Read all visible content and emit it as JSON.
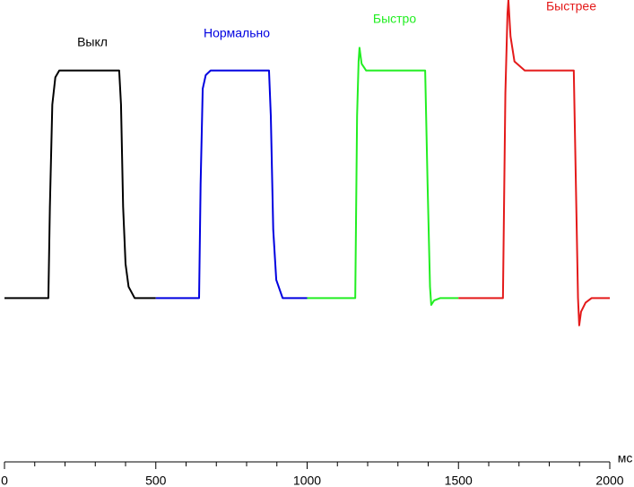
{
  "chart_data": {
    "type": "line",
    "x_label": "мс",
    "xlim": [
      0,
      2000
    ],
    "xticks": [
      0,
      500,
      1000,
      1500,
      2000
    ],
    "xminorticks": [
      100,
      200,
      300,
      400,
      600,
      700,
      800,
      900,
      1100,
      1200,
      1300,
      1400,
      1600,
      1700,
      1800,
      1900
    ],
    "ylim": [
      -72,
      131
    ],
    "series": [
      {
        "name": "Выкл",
        "color": "#000000",
        "x": [
          0,
          145,
          150,
          158,
          168,
          181,
          379,
          385,
          392,
          400,
          410,
          430,
          500
        ],
        "values": [
          0,
          0,
          40,
          85,
          97,
          100,
          100,
          85,
          40,
          15,
          5,
          0,
          0
        ]
      },
      {
        "name": "Нормально",
        "color": "#0000e0",
        "x": [
          500,
          643,
          648,
          655,
          665,
          681,
          874,
          880,
          888,
          898,
          919,
          1000
        ],
        "values": [
          0,
          0,
          50,
          92,
          98,
          100,
          100,
          80,
          30,
          8,
          0,
          0
        ]
      },
      {
        "name": "Быстро",
        "color": "#22ee22",
        "x": [
          1000,
          1159,
          1165,
          1170,
          1173,
          1180,
          1195,
          1390,
          1398,
          1406,
          1410,
          1420,
          1440,
          1500
        ],
        "values": [
          0,
          0,
          80,
          104,
          110,
          103,
          100,
          100,
          50,
          5,
          -3,
          -1,
          0,
          0
        ]
      },
      {
        "name": "Быстрее",
        "color": "#e41a1a",
        "x": [
          1500,
          1647,
          1655,
          1662,
          1665,
          1672,
          1685,
          1719,
          1881,
          1888,
          1895,
          1899,
          1905,
          1920,
          1940,
          2000
        ],
        "values": [
          0,
          0,
          90,
          125,
          131,
          115,
          104,
          100,
          100,
          50,
          0,
          -12,
          -6,
          -2,
          0,
          0
        ]
      }
    ]
  }
}
